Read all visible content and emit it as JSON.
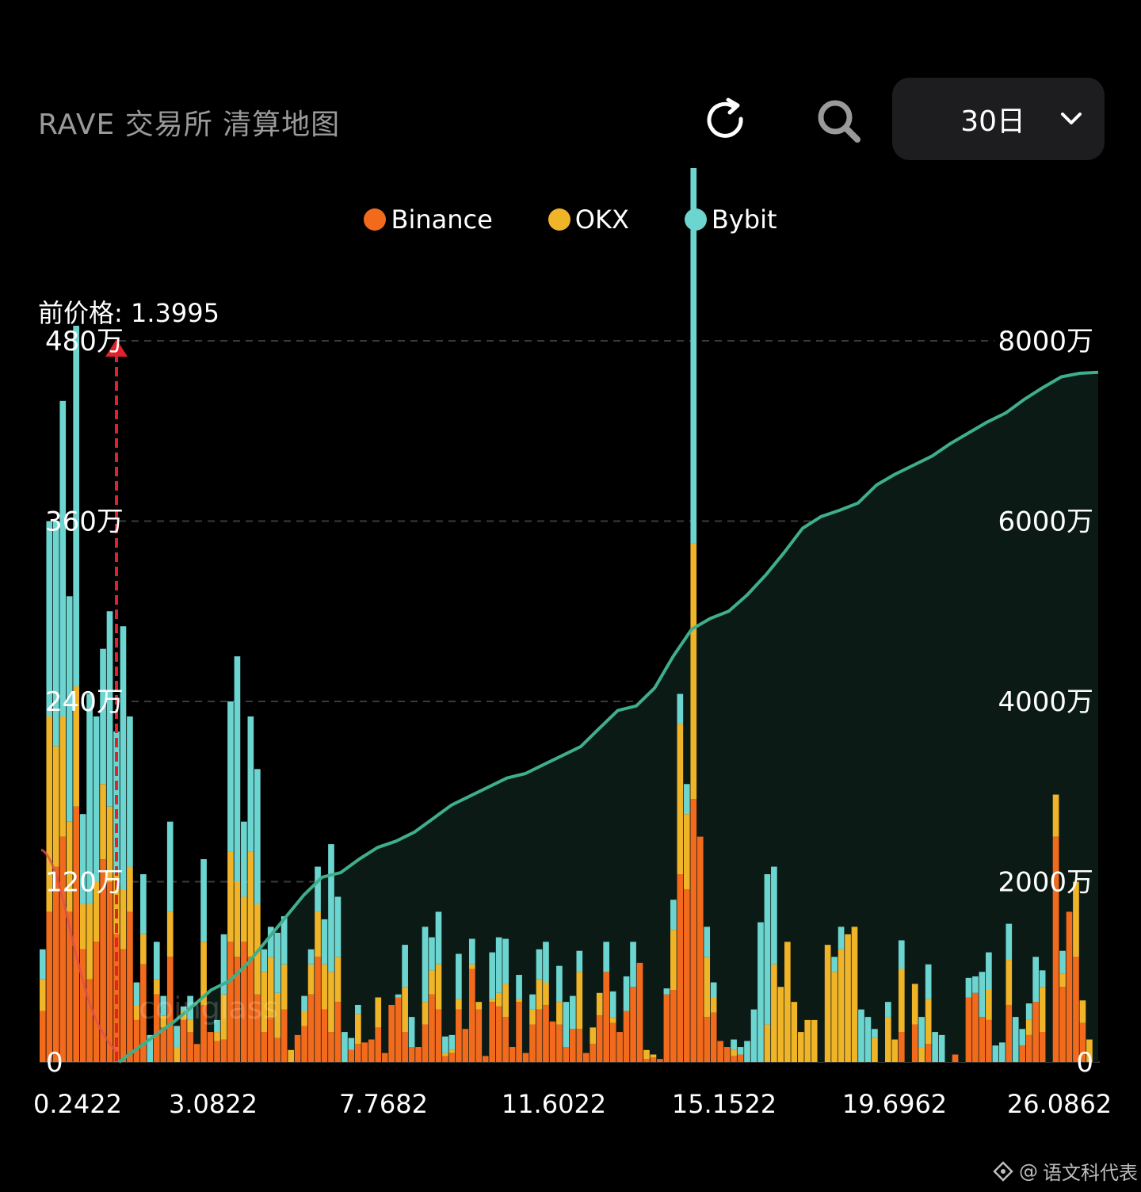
{
  "header": {
    "title": "RAVE 交易所 清算地图",
    "range_value": "30日",
    "refresh_icon": "refresh-icon",
    "search_icon": "search-icon",
    "dropdown_icon": "chevron-down-icon"
  },
  "current_price_label": "前价格: 1.3995",
  "watermark": {
    "text": "语文科代表",
    "brand": "coinglass"
  },
  "colors": {
    "binance": "#f26b1d",
    "okx": "#f0b428",
    "bybit": "#6dd5d0",
    "line": "#3fae8c",
    "marker": "#e0222a"
  },
  "chart_data": {
    "type": "bar",
    "x_ticks": [
      "0.2422",
      "3.0822",
      "7.7682",
      "11.6022",
      "15.1522",
      "19.6962",
      "26.0862"
    ],
    "current_price": 1.3995,
    "left_axis": {
      "ticks": [
        "0",
        "120万",
        "240万",
        "360万",
        "480万"
      ],
      "ylim": [
        0,
        4800000
      ]
    },
    "right_axis": {
      "ticks": [
        "0",
        "2000万",
        "4000万",
        "6000万",
        "8000万"
      ],
      "ylim": [
        0,
        80000000
      ]
    },
    "legend": [
      {
        "name": "Binance",
        "color": "#f26b1d"
      },
      {
        "name": "OKX",
        "color": "#f0b428"
      },
      {
        "name": "Bybit",
        "color": "#6dd5d0"
      }
    ],
    "stacked_series_order": [
      "Binance",
      "OKX",
      "Bybit"
    ],
    "bars": [
      [
        340,
        210,
        200
      ],
      [
        1000,
        1300,
        1300
      ],
      [
        1300,
        800,
        1500
      ],
      [
        1500,
        800,
        2100
      ],
      [
        1000,
        600,
        1500
      ],
      [
        1700,
        800,
        2400
      ],
      [
        750,
        300,
        600
      ],
      [
        550,
        500,
        1400
      ],
      [
        800,
        400,
        1100
      ],
      [
        1350,
        500,
        900
      ],
      [
        1200,
        500,
        1300
      ],
      [
        850,
        400,
        950
      ],
      [
        750,
        400,
        1750
      ],
      [
        1000,
        300,
        1000
      ],
      [
        280,
        100,
        150
      ],
      [
        650,
        200,
        400
      ],
      [
        0,
        0,
        180
      ],
      [
        450,
        100,
        250
      ],
      [
        230,
        80,
        130
      ],
      [
        700,
        300,
        600
      ],
      [
        0,
        100,
        140
      ],
      [
        280,
        60,
        30
      ],
      [
        200,
        80,
        160
      ],
      [
        120,
        0,
        0
      ],
      [
        380,
        420,
        550
      ],
      [
        200,
        0,
        0
      ],
      [
        140,
        60,
        80
      ],
      [
        150,
        300,
        400
      ],
      [
        800,
        600,
        1000
      ],
      [
        700,
        500,
        1500
      ],
      [
        800,
        300,
        500
      ],
      [
        700,
        700,
        900
      ],
      [
        450,
        600,
        900
      ],
      [
        200,
        400,
        150
      ],
      [
        300,
        400,
        200
      ],
      [
        160,
        300,
        400
      ],
      [
        350,
        300,
        320
      ],
      [
        0,
        80,
        0
      ],
      [
        180,
        0,
        0
      ],
      [
        240,
        100,
        100
      ],
      [
        450,
        200,
        100
      ],
      [
        700,
        300,
        300
      ],
      [
        350,
        300,
        300
      ],
      [
        200,
        400,
        850
      ],
      [
        400,
        300,
        400
      ],
      [
        0,
        0,
        200
      ],
      [
        80,
        0,
        80
      ],
      [
        120,
        200,
        60
      ],
      [
        130,
        0,
        0
      ],
      [
        150,
        0,
        0
      ],
      [
        230,
        200,
        0
      ],
      [
        60,
        0,
        0
      ],
      [
        380,
        0,
        0
      ],
      [
        430,
        0,
        20
      ],
      [
        200,
        300,
        280
      ],
      [
        100,
        0,
        200
      ],
      [
        100,
        0,
        0
      ],
      [
        250,
        150,
        500
      ],
      [
        450,
        160,
        220
      ],
      [
        350,
        300,
        350
      ],
      [
        40,
        20,
        110
      ],
      [
        60,
        20,
        100
      ],
      [
        350,
        70,
        300
      ],
      [
        220,
        0,
        0
      ],
      [
        620,
        30,
        170
      ],
      [
        350,
        50,
        0
      ],
      [
        40,
        0,
        0
      ],
      [
        400,
        20,
        310
      ],
      [
        370,
        90,
        370
      ],
      [
        300,
        220,
        300
      ],
      [
        100,
        0,
        0
      ],
      [
        400,
        20,
        160
      ],
      [
        60,
        0,
        0
      ],
      [
        250,
        100,
        100
      ],
      [
        350,
        200,
        200
      ],
      [
        380,
        150,
        270
      ],
      [
        270,
        0,
        0
      ],
      [
        250,
        150,
        240
      ],
      [
        100,
        0,
        300
      ],
      [
        220,
        0,
        220
      ],
      [
        220,
        380,
        140
      ],
      [
        60,
        0,
        0
      ],
      [
        120,
        110,
        0
      ],
      [
        310,
        150,
        0
      ],
      [
        600,
        0,
        200
      ],
      [
        260,
        40,
        170
      ],
      [
        200,
        0,
        0
      ],
      [
        340,
        0,
        230
      ],
      [
        500,
        0,
        300
      ],
      [
        660,
        0,
        0
      ],
      [
        20,
        60,
        0
      ],
      [
        30,
        20,
        0
      ],
      [
        20,
        0,
        0
      ],
      [
        450,
        0,
        40
      ],
      [
        480,
        400,
        200
      ],
      [
        1250,
        1000,
        200
      ],
      [
        1150,
        500,
        200
      ],
      [
        1750,
        1700,
        2500
      ],
      [
        1500,
        0,
        0
      ],
      [
        300,
        400,
        200
      ],
      [
        330,
        100,
        100
      ],
      [
        140,
        0,
        0
      ],
      [
        100,
        0,
        0
      ],
      [
        40,
        40,
        70
      ],
      [
        50,
        0,
        50
      ],
      [
        0,
        0,
        140
      ],
      [
        0,
        0,
        350
      ],
      [
        0,
        0,
        930
      ],
      [
        0,
        250,
        1000
      ],
      [
        0,
        650,
        650
      ],
      [
        0,
        500,
        0
      ],
      [
        0,
        800,
        0
      ],
      [
        0,
        400,
        0
      ],
      [
        0,
        200,
        0
      ],
      [
        0,
        280,
        0
      ],
      [
        0,
        280,
        0
      ],
      [
        0,
        0,
        0
      ],
      [
        0,
        780,
        0
      ],
      [
        0,
        600,
        100
      ],
      [
        0,
        750,
        150
      ],
      [
        0,
        850,
        0
      ],
      [
        0,
        900,
        0
      ],
      [
        0,
        0,
        350
      ],
      [
        0,
        0,
        300
      ],
      [
        0,
        160,
        60
      ],
      [
        0,
        0,
        0
      ],
      [
        0,
        300,
        100
      ],
      [
        0,
        150,
        0
      ],
      [
        200,
        420,
        190
      ],
      [
        0,
        0,
        0
      ],
      [
        250,
        270,
        0
      ],
      [
        0,
        100,
        200
      ],
      [
        120,
        300,
        230
      ],
      [
        0,
        0,
        200
      ],
      [
        0,
        0,
        180
      ],
      [
        0,
        0,
        0
      ],
      [
        50,
        0,
        0
      ],
      [
        0,
        0,
        0
      ],
      [
        430,
        0,
        130
      ],
      [
        460,
        0,
        110
      ],
      [
        300,
        0,
        300
      ],
      [
        280,
        200,
        250
      ],
      [
        0,
        0,
        110
      ],
      [
        0,
        0,
        130
      ],
      [
        380,
        300,
        240
      ],
      [
        0,
        0,
        300
      ],
      [
        110,
        0,
        110
      ],
      [
        180,
        100,
        110
      ],
      [
        400,
        0,
        300
      ],
      [
        200,
        300,
        110
      ],
      [
        0,
        0,
        0
      ],
      [
        1500,
        280,
        0
      ],
      [
        500,
        90,
        150
      ],
      [
        1000,
        0,
        0
      ],
      [
        700,
        500,
        0
      ],
      [
        260,
        150,
        0
      ],
      [
        0,
        150,
        0
      ],
      [
        0,
        0,
        0
      ]
    ],
    "cumulative_line_wan": [
      0,
      150,
      300,
      450,
      620,
      800,
      900,
      1100,
      1350,
      1600,
      1850,
      2050,
      2100,
      2250,
      2380,
      2450,
      2550,
      2700,
      2850,
      2950,
      3050,
      3150,
      3200,
      3300,
      3400,
      3500,
      3700,
      3900,
      3950,
      4150,
      4500,
      4800,
      4920,
      5000,
      5180,
      5400,
      5650,
      5920,
      6050,
      6120,
      6200,
      6400,
      6520,
      6620,
      6720,
      6860,
      6980,
      7100,
      7200,
      7350,
      7480,
      7600,
      7640,
      7650
    ]
  }
}
